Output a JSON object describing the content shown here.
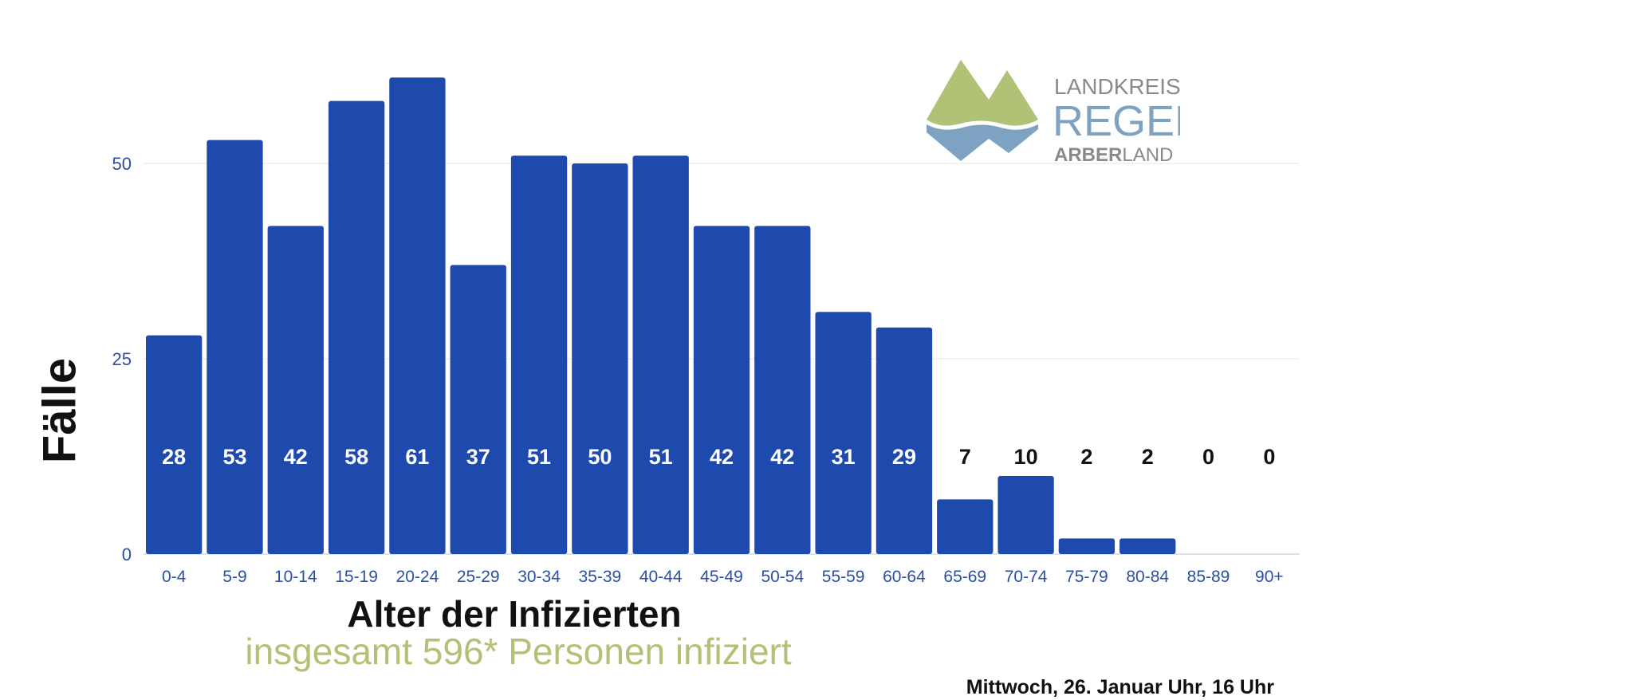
{
  "chart_data": {
    "type": "bar",
    "categories": [
      "0-4",
      "5-9",
      "10-14",
      "15-19",
      "20-24",
      "25-29",
      "30-34",
      "35-39",
      "40-44",
      "45-49",
      "50-54",
      "55-59",
      "60-64",
      "65-69",
      "70-74",
      "75-79",
      "80-84",
      "85-89",
      "90+"
    ],
    "values": [
      28,
      53,
      42,
      58,
      61,
      37,
      51,
      50,
      51,
      42,
      42,
      31,
      29,
      7,
      10,
      2,
      2,
      0,
      0
    ],
    "ylabel": "Fälle",
    "xlabel": "Alter der Infizierten",
    "subtitle": "insgesamt 596* Personen infiziert",
    "yticks": [
      0,
      25,
      50
    ],
    "ylim": [
      0,
      75
    ],
    "grid": true,
    "bar_color": "#1e49ad",
    "tick_color": "#2d4fa3"
  },
  "date_text": "Mittwoch, 26. Januar Uhr, 16 Uhr",
  "logo": {
    "line1": "LANDKREIS",
    "line2": "REGEN",
    "line3a": "ARBER",
    "line3b": "LAND",
    "green": "#b1c176",
    "blue": "#7ea3c2",
    "gray": "#8a8a8a"
  }
}
